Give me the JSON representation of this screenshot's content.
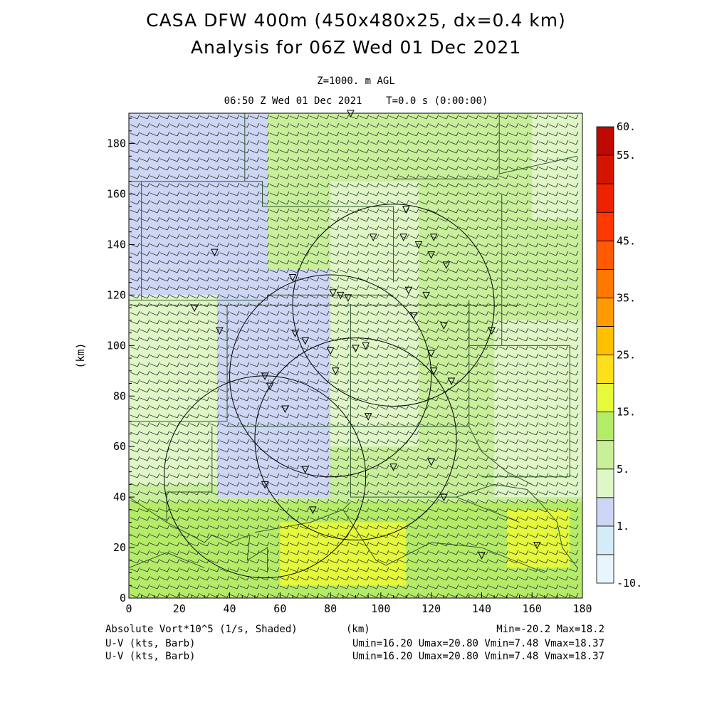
{
  "title_line1": "CASA DFW 400m (450x480x25, dx=0.4 km)",
  "title_line2": "Analysis for 06Z Wed 01 Dec 2021",
  "level_label": "Z=1000. m AGL",
  "time_label": "06:50 Z Wed 01 Dec 2021    T=0.0 s (0:00:00)",
  "footer": {
    "field_label": "Absolute Vort*10^5 (1/s, Shaded)",
    "barb1_label": "U-V (kts, Barb)",
    "barb2_label": "U-V (kts, Barb)",
    "minmax": "Min=-20.2 Max=18.2",
    "stats1": "Umin=16.20 Umax=20.80 Vmin=7.48 Vmax=18.37",
    "stats2": "Umin=16.20 Umax=20.80 Vmin=7.48 Vmax=18.37"
  },
  "chart_data": {
    "type": "heatmap",
    "xlabel": "(km)",
    "ylabel": "(km)",
    "xlim": [
      0,
      180
    ],
    "ylim": [
      0,
      192
    ],
    "x_ticks": [
      0,
      20,
      40,
      60,
      80,
      100,
      120,
      140,
      160,
      180
    ],
    "y_ticks": [
      0,
      20,
      40,
      60,
      80,
      100,
      120,
      140,
      160,
      180
    ],
    "x_tick_labels": [
      "0",
      "20",
      "40",
      "60",
      "80",
      "100",
      "120",
      "140",
      "160",
      "180"
    ],
    "y_tick_labels": [
      "0",
      "20",
      "40",
      "60",
      "80",
      "100",
      "120",
      "140",
      "160",
      "180"
    ],
    "colorbar": {
      "colors": [
        "#e8f6fb",
        "#d4ecf8",
        "#cdd6f4",
        "#dff7c6",
        "#c8f09a",
        "#b4ec68",
        "#e4fa3a",
        "#ffde1c",
        "#ffc000",
        "#ff9a00",
        "#ff7800",
        "#ff5a00",
        "#ff3800",
        "#ee2200",
        "#d51400",
        "#bf0800"
      ],
      "labels": [
        {
          "text": "-10.",
          "index": 0
        },
        {
          "text": "1.",
          "index": 2
        },
        {
          "text": "5.",
          "index": 4
        },
        {
          "text": "15.",
          "index": 6
        },
        {
          "text": "25.",
          "index": 8
        },
        {
          "text": "35.",
          "index": 10
        },
        {
          "text": "45.",
          "index": 12
        },
        {
          "text": "55.",
          "index": 15
        },
        {
          "text": "60.",
          "index": 16
        }
      ]
    },
    "background_regions": [
      {
        "x": [
          0,
          180
        ],
        "y": [
          0,
          192
        ],
        "level": 4
      },
      {
        "x": [
          0,
          55
        ],
        "y": [
          120,
          192
        ],
        "level": 2
      },
      {
        "x": [
          0,
          35
        ],
        "y": [
          45,
          120
        ],
        "level": 3
      },
      {
        "x": [
          35,
          80
        ],
        "y": [
          40,
          130
        ],
        "level": 2
      },
      {
        "x": [
          80,
          115
        ],
        "y": [
          60,
          165
        ],
        "level": 3
      },
      {
        "x": [
          145,
          180
        ],
        "y": [
          40,
          110
        ],
        "level": 3
      },
      {
        "x": [
          0,
          180
        ],
        "y": [
          0,
          38
        ],
        "level": 5
      },
      {
        "x": [
          150,
          175
        ],
        "y": [
          12,
          35
        ],
        "level": 6
      },
      {
        "x": [
          60,
          110
        ],
        "y": [
          5,
          30
        ],
        "level": 6
      },
      {
        "x": [
          160,
          180
        ],
        "y": [
          150,
          192
        ],
        "level": 3
      }
    ],
    "range_rings": [
      {
        "cx": 105,
        "cy": 116,
        "r": 40
      },
      {
        "cx": 80,
        "cy": 88,
        "r": 40
      },
      {
        "cx": 90,
        "cy": 63,
        "r": 40
      },
      {
        "cx": 54,
        "cy": 48,
        "r": 40
      }
    ],
    "radar_sites": [
      [
        88,
        192
      ],
      [
        110,
        154
      ],
      [
        109,
        143
      ],
      [
        97,
        143
      ],
      [
        115,
        140
      ],
      [
        121,
        143
      ],
      [
        120,
        136
      ],
      [
        126,
        132
      ],
      [
        34,
        137
      ],
      [
        65,
        127
      ],
      [
        81,
        121
      ],
      [
        84,
        120
      ],
      [
        87,
        119
      ],
      [
        111,
        122
      ],
      [
        118,
        120
      ],
      [
        26,
        115
      ],
      [
        36,
        106
      ],
      [
        66,
        105
      ],
      [
        70,
        102
      ],
      [
        113,
        112
      ],
      [
        125,
        108
      ],
      [
        144,
        106
      ],
      [
        80,
        98
      ],
      [
        90,
        99
      ],
      [
        94,
        100
      ],
      [
        120,
        97
      ],
      [
        121,
        90
      ],
      [
        82,
        90
      ],
      [
        54,
        88
      ],
      [
        56,
        84
      ],
      [
        128,
        86
      ],
      [
        62,
        75
      ],
      [
        95,
        72
      ],
      [
        70,
        51
      ],
      [
        105,
        52
      ],
      [
        120,
        54
      ],
      [
        54,
        45
      ],
      [
        73,
        35
      ],
      [
        125,
        40
      ],
      [
        140,
        17
      ],
      [
        162,
        21
      ]
    ],
    "county_boundaries": [
      [
        [
          46,
          192
        ],
        [
          46,
          165
        ]
      ],
      [
        [
          0,
          165
        ],
        [
          53,
          165
        ],
        [
          53,
          155
        ],
        [
          105,
          155
        ],
        [
          105,
          125
        ]
      ],
      [
        [
          5,
          165
        ],
        [
          5,
          118
        ]
      ],
      [
        [
          0,
          118
        ],
        [
          55,
          118
        ],
        [
          55,
          120
        ],
        [
          105,
          120
        ]
      ],
      [
        [
          0,
          116
        ],
        [
          155,
          116
        ]
      ],
      [
        [
          147,
          192
        ],
        [
          147,
          168
        ],
        [
          178,
          175
        ]
      ],
      [
        [
          105,
          166
        ],
        [
          147,
          166
        ]
      ],
      [
        [
          148,
          160
        ],
        [
          148,
          100
        ],
        [
          175,
          100
        ],
        [
          175,
          48
        ],
        [
          140,
          48
        ]
      ],
      [
        [
          135,
          118
        ],
        [
          135,
          100
        ],
        [
          148,
          100
        ]
      ],
      [
        [
          39,
          116
        ],
        [
          39,
          70
        ],
        [
          0,
          70
        ]
      ],
      [
        [
          39,
          68
        ],
        [
          135,
          68
        ],
        [
          135,
          116
        ]
      ],
      [
        [
          88,
          116
        ],
        [
          88,
          68
        ]
      ],
      [
        [
          33,
          68
        ],
        [
          33,
          42
        ],
        [
          15,
          42
        ],
        [
          15,
          30
        ]
      ],
      [
        [
          0,
          40
        ],
        [
          15,
          30
        ],
        [
          30,
          22
        ],
        [
          33,
          25
        ]
      ],
      [
        [
          33,
          25
        ],
        [
          40,
          22
        ],
        [
          48,
          25
        ],
        [
          47,
          15
        ],
        [
          55,
          20
        ],
        [
          55,
          10
        ]
      ],
      [
        [
          50,
          26
        ],
        [
          72,
          30
        ],
        [
          85,
          35
        ],
        [
          88,
          38
        ]
      ],
      [
        [
          88,
          68
        ],
        [
          88,
          40
        ],
        [
          130,
          40
        ],
        [
          155,
          30
        ]
      ],
      [
        [
          130,
          40
        ],
        [
          145,
          45
        ],
        [
          158,
          43
        ],
        [
          163,
          38
        ],
        [
          170,
          30
        ],
        [
          172,
          20
        ],
        [
          178,
          12
        ]
      ],
      [
        [
          85,
          35
        ],
        [
          98,
          15
        ],
        [
          102,
          13
        ],
        [
          120,
          22
        ],
        [
          140,
          20
        ],
        [
          165,
          10
        ]
      ],
      [
        [
          135,
          68
        ],
        [
          140,
          58
        ],
        [
          150,
          50
        ],
        [
          160,
          45
        ]
      ],
      [
        [
          0,
          12
        ],
        [
          15,
          18
        ],
        [
          30,
          12
        ]
      ]
    ]
  }
}
